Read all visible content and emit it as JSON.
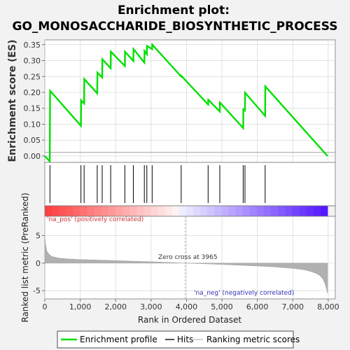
{
  "chart_data": {
    "type": "line",
    "title_line1": "Enrichment plot:",
    "title_line2": "GO_MONOSACCHARIDE_BIOSYNTHETIC_PROCESS",
    "es_panel": {
      "ylabel": "Enrichment score (ES)",
      "ylim": [
        -0.02,
        0.365
      ],
      "yticks": [
        0.0,
        0.05,
        0.1,
        0.15,
        0.2,
        0.25,
        0.3,
        0.35
      ],
      "ytick_labels": [
        "0.00",
        "0.05",
        "0.10",
        "0.15",
        "0.20",
        "0.25",
        "0.30",
        "0.35"
      ],
      "series": [
        {
          "name": "Enrichment profile",
          "color": "#00e000",
          "x": [
            0,
            140,
            150,
            1020,
            1025,
            1110,
            1115,
            1480,
            1485,
            1620,
            1625,
            1860,
            1865,
            2260,
            2265,
            2500,
            2505,
            2810,
            2815,
            2880,
            2885,
            3030,
            3035,
            3850,
            3855,
            4610,
            4615,
            4940,
            4945,
            5600,
            5605,
            5650,
            5655,
            6220,
            6225,
            7980
          ],
          "values": [
            0.0,
            -0.017,
            0.205,
            0.095,
            0.175,
            0.165,
            0.242,
            0.197,
            0.262,
            0.247,
            0.304,
            0.276,
            0.328,
            0.283,
            0.328,
            0.299,
            0.336,
            0.294,
            0.33,
            0.32,
            0.346,
            0.336,
            0.35,
            0.25,
            0.252,
            0.162,
            0.177,
            0.14,
            0.168,
            0.088,
            0.147,
            0.143,
            0.199,
            0.126,
            0.219,
            0.0
          ]
        }
      ]
    },
    "hits": {
      "name": "Hits",
      "positions": [
        145,
        1020,
        1110,
        1480,
        1620,
        1860,
        2260,
        2500,
        2810,
        2880,
        3030,
        3850,
        4610,
        4940,
        5600,
        5650,
        6220
      ]
    },
    "ranked_panel": {
      "ylabel": "Ranked list metric (PreRanked)",
      "ylim": [
        -6.5,
        8.5
      ],
      "yticks": [
        -5,
        0,
        5
      ],
      "ytick_labels": [
        "-5",
        "0",
        "5"
      ],
      "series_name": "Ranking metric scores",
      "color": "#b0b0b0",
      "x": [
        0,
        20,
        60,
        120,
        200,
        400,
        700,
        1000,
        1500,
        2000,
        2500,
        3000,
        3500,
        3965,
        4500,
        5000,
        5500,
        6000,
        6500,
        7000,
        7300,
        7500,
        7650,
        7750,
        7850,
        7900,
        7950,
        7980
      ],
      "values": [
        5.0,
        3.5,
        2.2,
        1.6,
        1.2,
        0.9,
        0.75,
        0.65,
        0.55,
        0.45,
        0.35,
        0.25,
        0.12,
        0.0,
        -0.12,
        -0.25,
        -0.38,
        -0.52,
        -0.7,
        -0.95,
        -1.2,
        -1.5,
        -1.85,
        -2.2,
        -2.9,
        -3.6,
        -4.6,
        -5.5
      ]
    },
    "annotations": {
      "pos_label": "'na_pos' (positively correlated)",
      "neg_label": "'na_neg' (negatively correlated)",
      "zero_cross": "Zero cross at 3965",
      "zero_cross_x": 3965
    },
    "xaxis": {
      "label": "Rank in Ordered Dataset",
      "xlim": [
        0,
        8200
      ],
      "xticks": [
        0,
        1000,
        2000,
        3000,
        4000,
        5000,
        6000,
        7000,
        8000
      ],
      "xtick_labels": [
        "0",
        "1,000",
        "2,000",
        "3,000",
        "4,000",
        "5,000",
        "6,000",
        "7,000",
        "8,000"
      ]
    },
    "legend": {
      "placement": "bottom",
      "entries": [
        "Enrichment profile",
        "Hits",
        "Ranking metric scores"
      ]
    },
    "colors": {
      "profile": "#00e000",
      "hits": "#000000",
      "grid": "#d0d0d0",
      "pos_label": "#cc3333",
      "neg_label": "#3333bb"
    }
  }
}
